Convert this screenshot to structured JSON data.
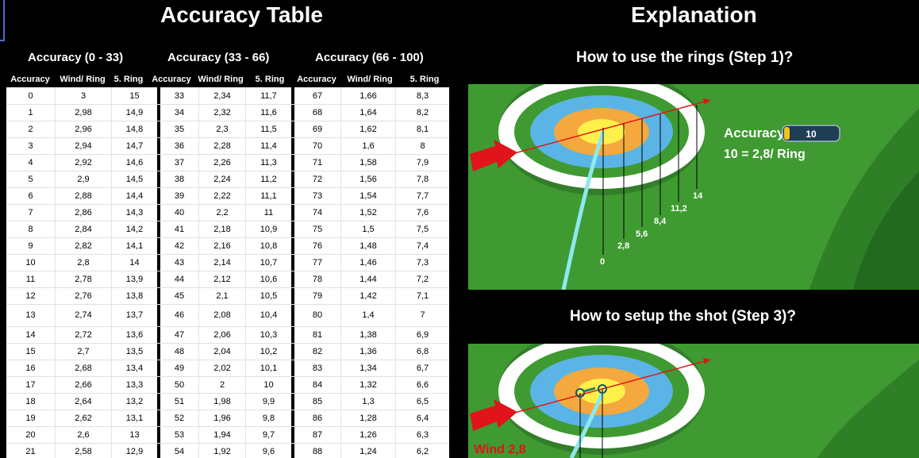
{
  "left": {
    "title": "Accuracy Table",
    "groups": [
      "Accuracy (0 - 33)",
      "Accuracy (33 - 66)",
      "Accuracy (66 - 100)"
    ],
    "column_headers": [
      "Accuracy",
      "Wind/ Ring",
      "5. Ring",
      "Accuracy",
      "Wind/ Ring",
      "5. Ring",
      "Accuracy",
      "Wind/ Ring",
      "5. Ring"
    ],
    "rows": [
      [
        "0",
        "3",
        "15",
        "33",
        "2,34",
        "11,7",
        "67",
        "1,66",
        "8,3"
      ],
      [
        "1",
        "2,98",
        "14,9",
        "34",
        "2,32",
        "11,6",
        "68",
        "1,64",
        "8,2"
      ],
      [
        "2",
        "2,96",
        "14,8",
        "35",
        "2,3",
        "11,5",
        "69",
        "1,62",
        "8,1"
      ],
      [
        "3",
        "2,94",
        "14,7",
        "36",
        "2,28",
        "11,4",
        "70",
        "1,6",
        "8"
      ],
      [
        "4",
        "2,92",
        "14,6",
        "37",
        "2,26",
        "11,3",
        "71",
        "1,58",
        "7,9"
      ],
      [
        "5",
        "2,9",
        "14,5",
        "38",
        "2,24",
        "11,2",
        "72",
        "1,56",
        "7,8"
      ],
      [
        "6",
        "2,88",
        "14,4",
        "39",
        "2,22",
        "11,1",
        "73",
        "1,54",
        "7,7"
      ],
      [
        "7",
        "2,86",
        "14,3",
        "40",
        "2,2",
        "11",
        "74",
        "1,52",
        "7,6"
      ],
      [
        "8",
        "2,84",
        "14,2",
        "41",
        "2,18",
        "10,9",
        "75",
        "1,5",
        "7,5"
      ],
      [
        "9",
        "2,82",
        "14,1",
        "42",
        "2,16",
        "10,8",
        "76",
        "1,48",
        "7,4"
      ],
      [
        "10",
        "2,8",
        "14",
        "43",
        "2,14",
        "10,7",
        "77",
        "1,46",
        "7,3"
      ],
      [
        "11",
        "2,78",
        "13,9",
        "44",
        "2,12",
        "10,6",
        "78",
        "1,44",
        "7,2"
      ],
      [
        "12",
        "2,76",
        "13,8",
        "45",
        "2,1",
        "10,5",
        "79",
        "1,42",
        "7,1"
      ],
      [
        "13",
        "2,74",
        "13,7",
        "46",
        "2,08",
        "10,4",
        "80",
        "1,4",
        "7"
      ],
      [
        "14",
        "2,72",
        "13,6",
        "47",
        "2,06",
        "10,3",
        "81",
        "1,38",
        "6,9"
      ],
      [
        "15",
        "2,7",
        "13,5",
        "48",
        "2,04",
        "10,2",
        "82",
        "1,36",
        "6,8"
      ],
      [
        "16",
        "2,68",
        "13,4",
        "49",
        "2,02",
        "10,1",
        "83",
        "1,34",
        "6,7"
      ],
      [
        "17",
        "2,66",
        "13,3",
        "50",
        "2",
        "10",
        "84",
        "1,32",
        "6,6"
      ],
      [
        "18",
        "2,64",
        "13,2",
        "51",
        "1,98",
        "9,9",
        "85",
        "1,3",
        "6,5"
      ],
      [
        "19",
        "2,62",
        "13,1",
        "52",
        "1,96",
        "9,8",
        "86",
        "1,28",
        "6,4"
      ],
      [
        "20",
        "2,6",
        "13",
        "53",
        "1,94",
        "9,7",
        "87",
        "1,26",
        "6,3"
      ],
      [
        "21",
        "2,58",
        "12,9",
        "54",
        "1,92",
        "9,6",
        "88",
        "1,24",
        "6,2"
      ]
    ]
  },
  "right": {
    "title": "Explanation",
    "step1_title": "How to use the rings (Step 1)?",
    "step3_title": "How to setup the shot (Step 3)?",
    "step1_image": {
      "accuracy_label": "Accuracy",
      "accuracy_value": "10",
      "formula": "10 = 2,8/ Ring",
      "ring_labels": [
        "0",
        "2,8",
        "5,6",
        "8,4",
        "11,2",
        "14"
      ]
    },
    "step3_image": {
      "wind_label": "Wind 2,8"
    }
  },
  "colors": {
    "background": "#000000",
    "grass": "#3f9a31",
    "target_white": "#ffffff",
    "target_blue": "#5ab4e6",
    "target_orange": "#f4a83d",
    "target_yellow": "#fff04a",
    "arrow_red": "#e0141a",
    "wind_text": "#e0141a",
    "accuracy_bar": "#f2c31a"
  },
  "icons": [
    "red-arrow-icon",
    "accuracy-bar-icon"
  ]
}
